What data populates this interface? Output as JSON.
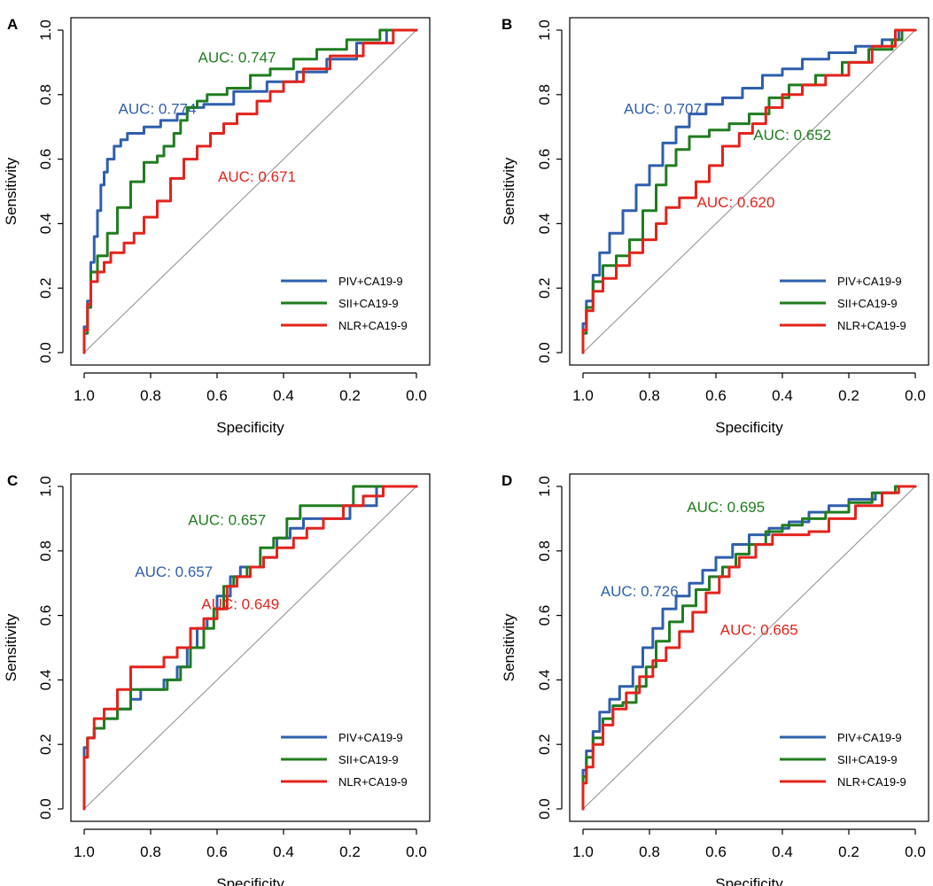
{
  "colors": {
    "PIV+CA19-9": "#2f5fad",
    "SII+CA19-9": "#1f7d1f",
    "NLR+CA19-9": "#e3231c",
    "diagonal": "#8c8c8c",
    "axis": "#000000"
  },
  "chart_data": [
    {
      "type": "line",
      "panel": "A",
      "title": "",
      "xlabel": "Specificity",
      "ylabel": "Sensitivity",
      "xlim": [
        1.0,
        0.0
      ],
      "ylim": [
        0.0,
        1.0
      ],
      "x_reversed": true,
      "xticks": [
        "1.0",
        "0.8",
        "0.6",
        "0.4",
        "0.2",
        "0.0"
      ],
      "yticks": [
        "0.0",
        "0.2",
        "0.4",
        "0.6",
        "0.8",
        "1.0"
      ],
      "legend": [
        "PIV+CA19-9",
        "SII+CA19-9",
        "NLR+CA19-9"
      ],
      "legend_position": "bottom-right",
      "series": [
        {
          "name": "PIV+CA19-9",
          "auc_label": "AUC: 0.774",
          "auc_at": [
            0.78,
            0.74
          ],
          "x": [
            1.0,
            0.99,
            0.98,
            0.97,
            0.96,
            0.95,
            0.94,
            0.93,
            0.91,
            0.89,
            0.87,
            0.82,
            0.77,
            0.72,
            0.69,
            0.64,
            0.55,
            0.45,
            0.36,
            0.27,
            0.18,
            0.09,
            0.0
          ],
          "y": [
            0.0,
            0.08,
            0.16,
            0.28,
            0.36,
            0.44,
            0.52,
            0.56,
            0.6,
            0.64,
            0.66,
            0.68,
            0.7,
            0.72,
            0.74,
            0.76,
            0.77,
            0.81,
            0.84,
            0.87,
            0.91,
            0.96,
            1.0
          ]
        },
        {
          "name": "SII+CA19-9",
          "auc_label": "AUC: 0.747",
          "auc_at": [
            0.54,
            0.9
          ],
          "x": [
            1.0,
            0.99,
            0.98,
            0.96,
            0.93,
            0.9,
            0.86,
            0.82,
            0.78,
            0.76,
            0.73,
            0.71,
            0.69,
            0.66,
            0.63,
            0.57,
            0.5,
            0.44,
            0.37,
            0.3,
            0.21,
            0.11,
            0.0
          ],
          "y": [
            0.0,
            0.06,
            0.14,
            0.25,
            0.3,
            0.37,
            0.45,
            0.53,
            0.59,
            0.61,
            0.64,
            0.68,
            0.72,
            0.76,
            0.78,
            0.8,
            0.82,
            0.86,
            0.88,
            0.91,
            0.94,
            0.97,
            1.0
          ]
        },
        {
          "name": "NLR+CA19-9",
          "auc_label": "AUC: 0.671",
          "auc_at": [
            0.48,
            0.53
          ],
          "x": [
            1.0,
            0.99,
            0.98,
            0.96,
            0.94,
            0.92,
            0.88,
            0.85,
            0.82,
            0.78,
            0.74,
            0.7,
            0.66,
            0.62,
            0.58,
            0.54,
            0.48,
            0.44,
            0.4,
            0.34,
            0.26,
            0.16,
            0.07,
            0.0
          ],
          "y": [
            0.0,
            0.07,
            0.15,
            0.22,
            0.25,
            0.28,
            0.31,
            0.34,
            0.37,
            0.42,
            0.47,
            0.54,
            0.6,
            0.64,
            0.68,
            0.71,
            0.74,
            0.78,
            0.81,
            0.84,
            0.88,
            0.92,
            0.96,
            1.0
          ]
        }
      ]
    },
    {
      "type": "line",
      "panel": "B",
      "title": "",
      "xlabel": "Specificity",
      "ylabel": "Sensitivity",
      "xlim": [
        1.0,
        0.0
      ],
      "ylim": [
        0.0,
        1.0
      ],
      "x_reversed": true,
      "xticks": [
        "1.0",
        "0.8",
        "0.6",
        "0.4",
        "0.2",
        "0.0"
      ],
      "yticks": [
        "0.0",
        "0.2",
        "0.4",
        "0.6",
        "0.8",
        "1.0"
      ],
      "legend": [
        "PIV+CA19-9",
        "SII+CA19-9",
        "NLR+CA19-9"
      ],
      "legend_position": "bottom-right",
      "series": [
        {
          "name": "PIV+CA19-9",
          "auc_label": "AUC: 0.707",
          "auc_at": [
            0.76,
            0.74
          ],
          "x": [
            1.0,
            0.99,
            0.97,
            0.95,
            0.92,
            0.88,
            0.84,
            0.8,
            0.76,
            0.72,
            0.68,
            0.63,
            0.58,
            0.52,
            0.46,
            0.4,
            0.34,
            0.26,
            0.18,
            0.1,
            0.05,
            0.0
          ],
          "y": [
            0.0,
            0.09,
            0.16,
            0.24,
            0.31,
            0.37,
            0.44,
            0.52,
            0.58,
            0.65,
            0.7,
            0.74,
            0.77,
            0.79,
            0.82,
            0.86,
            0.88,
            0.91,
            0.93,
            0.95,
            0.97,
            1.0
          ]
        },
        {
          "name": "SII+CA19-9",
          "auc_label": "AUC: 0.652",
          "auc_at": [
            0.37,
            0.66
          ],
          "x": [
            1.0,
            0.99,
            0.97,
            0.94,
            0.9,
            0.86,
            0.82,
            0.78,
            0.75,
            0.72,
            0.68,
            0.62,
            0.56,
            0.5,
            0.44,
            0.38,
            0.3,
            0.22,
            0.14,
            0.07,
            0.04,
            0.0
          ],
          "y": [
            0.0,
            0.06,
            0.14,
            0.22,
            0.27,
            0.3,
            0.35,
            0.44,
            0.52,
            0.58,
            0.63,
            0.67,
            0.69,
            0.71,
            0.74,
            0.79,
            0.83,
            0.86,
            0.9,
            0.94,
            0.97,
            1.0
          ]
        },
        {
          "name": "NLR+CA19-9",
          "auc_label": "AUC: 0.620",
          "auc_at": [
            0.54,
            0.45
          ],
          "x": [
            1.0,
            0.99,
            0.97,
            0.94,
            0.9,
            0.86,
            0.82,
            0.78,
            0.75,
            0.71,
            0.66,
            0.62,
            0.58,
            0.53,
            0.49,
            0.45,
            0.4,
            0.34,
            0.27,
            0.2,
            0.13,
            0.06,
            0.0
          ],
          "y": [
            0.0,
            0.07,
            0.13,
            0.19,
            0.23,
            0.27,
            0.31,
            0.35,
            0.4,
            0.45,
            0.48,
            0.53,
            0.58,
            0.64,
            0.68,
            0.71,
            0.76,
            0.8,
            0.83,
            0.86,
            0.9,
            0.95,
            1.0
          ]
        }
      ]
    },
    {
      "type": "line",
      "panel": "C",
      "title": "",
      "xlabel": "Specificity",
      "ylabel": "Sensitivity",
      "xlim": [
        1.0,
        0.0
      ],
      "ylim": [
        0.0,
        1.0
      ],
      "x_reversed": true,
      "xticks": [
        "1.0",
        "0.8",
        "0.6",
        "0.4",
        "0.2",
        "0.0"
      ],
      "yticks": [
        "0.0",
        "0.2",
        "0.4",
        "0.6",
        "0.8",
        "1.0"
      ],
      "legend": [
        "PIV+CA19-9",
        "SII+CA19-9",
        "NLR+CA19-9"
      ],
      "legend_position": "bottom-right",
      "series": [
        {
          "name": "PIV+CA19-9",
          "auc_label": "AUC: 0.657",
          "auc_at": [
            0.73,
            0.72
          ],
          "x": [
            1.0,
            0.99,
            0.97,
            0.94,
            0.9,
            0.86,
            0.83,
            0.76,
            0.72,
            0.69,
            0.66,
            0.63,
            0.6,
            0.56,
            0.53,
            0.5,
            0.46,
            0.42,
            0.38,
            0.34,
            0.28,
            0.2,
            0.12,
            0.07,
            0.0
          ],
          "y": [
            0.0,
            0.19,
            0.22,
            0.25,
            0.28,
            0.31,
            0.34,
            0.37,
            0.4,
            0.44,
            0.5,
            0.56,
            0.59,
            0.66,
            0.72,
            0.75,
            0.75,
            0.78,
            0.84,
            0.87,
            0.9,
            0.9,
            0.94,
            1.0,
            1.0
          ]
        },
        {
          "name": "SII+CA19-9",
          "auc_label": "AUC: 0.657",
          "auc_at": [
            0.57,
            0.88
          ],
          "x": [
            1.0,
            0.99,
            0.97,
            0.94,
            0.9,
            0.86,
            0.82,
            0.75,
            0.71,
            0.68,
            0.64,
            0.61,
            0.58,
            0.55,
            0.51,
            0.47,
            0.43,
            0.39,
            0.35,
            0.27,
            0.19,
            0.11,
            0.04,
            0.0
          ],
          "y": [
            0.0,
            0.16,
            0.22,
            0.25,
            0.28,
            0.31,
            0.37,
            0.37,
            0.4,
            0.44,
            0.5,
            0.56,
            0.62,
            0.69,
            0.72,
            0.75,
            0.81,
            0.84,
            0.9,
            0.94,
            0.94,
            1.0,
            1.0,
            1.0
          ]
        },
        {
          "name": "NLR+CA19-9",
          "auc_label": "AUC: 0.649",
          "auc_at": [
            0.53,
            0.62
          ],
          "x": [
            1.0,
            0.99,
            0.97,
            0.94,
            0.9,
            0.86,
            0.82,
            0.76,
            0.72,
            0.68,
            0.64,
            0.6,
            0.57,
            0.54,
            0.5,
            0.46,
            0.42,
            0.37,
            0.33,
            0.28,
            0.22,
            0.16,
            0.1,
            0.04,
            0.0
          ],
          "y": [
            0.0,
            0.16,
            0.22,
            0.28,
            0.31,
            0.37,
            0.44,
            0.44,
            0.47,
            0.5,
            0.56,
            0.59,
            0.62,
            0.69,
            0.72,
            0.75,
            0.78,
            0.81,
            0.84,
            0.87,
            0.9,
            0.94,
            0.97,
            1.0,
            1.0
          ]
        }
      ]
    },
    {
      "type": "line",
      "panel": "D",
      "title": "",
      "xlabel": "Specificity",
      "ylabel": "Sensitivity",
      "xlim": [
        1.0,
        0.0
      ],
      "ylim": [
        0.0,
        1.0
      ],
      "x_reversed": true,
      "xticks": [
        "1.0",
        "0.8",
        "0.6",
        "0.4",
        "0.2",
        "0.0"
      ],
      "yticks": [
        "0.0",
        "0.2",
        "0.4",
        "0.6",
        "0.8",
        "1.0"
      ],
      "legend": [
        "PIV+CA19-9",
        "SII+CA19-9",
        "NLR+CA19-9"
      ],
      "legend_position": "bottom-right",
      "series": [
        {
          "name": "PIV+CA19-9",
          "auc_label": "AUC: 0.726",
          "auc_at": [
            0.83,
            0.66
          ],
          "x": [
            1.0,
            0.99,
            0.97,
            0.95,
            0.92,
            0.89,
            0.85,
            0.82,
            0.79,
            0.76,
            0.72,
            0.68,
            0.64,
            0.6,
            0.55,
            0.5,
            0.44,
            0.38,
            0.32,
            0.26,
            0.2,
            0.12,
            0.06,
            0.0
          ],
          "y": [
            0.0,
            0.12,
            0.18,
            0.24,
            0.3,
            0.34,
            0.38,
            0.44,
            0.5,
            0.56,
            0.62,
            0.66,
            0.7,
            0.74,
            0.78,
            0.82,
            0.85,
            0.87,
            0.89,
            0.92,
            0.94,
            0.96,
            0.98,
            1.0
          ]
        },
        {
          "name": "SII+CA19-9",
          "auc_label": "AUC: 0.695",
          "auc_at": [
            0.57,
            0.92
          ],
          "x": [
            1.0,
            0.99,
            0.97,
            0.94,
            0.91,
            0.88,
            0.84,
            0.81,
            0.78,
            0.74,
            0.7,
            0.66,
            0.62,
            0.58,
            0.54,
            0.5,
            0.45,
            0.4,
            0.34,
            0.27,
            0.2,
            0.13,
            0.06,
            0.0
          ],
          "y": [
            0.0,
            0.1,
            0.16,
            0.22,
            0.28,
            0.32,
            0.33,
            0.38,
            0.44,
            0.52,
            0.58,
            0.63,
            0.68,
            0.72,
            0.75,
            0.79,
            0.82,
            0.86,
            0.88,
            0.9,
            0.92,
            0.95,
            0.98,
            1.0
          ]
        },
        {
          "name": "NLR+CA19-9",
          "auc_label": "AUC: 0.665",
          "auc_at": [
            0.47,
            0.54
          ],
          "x": [
            1.0,
            0.99,
            0.97,
            0.94,
            0.91,
            0.87,
            0.83,
            0.79,
            0.75,
            0.71,
            0.67,
            0.63,
            0.59,
            0.56,
            0.53,
            0.48,
            0.43,
            0.38,
            0.32,
            0.26,
            0.18,
            0.1,
            0.05,
            0.0
          ],
          "y": [
            0.0,
            0.08,
            0.13,
            0.2,
            0.26,
            0.31,
            0.36,
            0.41,
            0.46,
            0.5,
            0.55,
            0.61,
            0.67,
            0.72,
            0.75,
            0.78,
            0.82,
            0.85,
            0.85,
            0.86,
            0.9,
            0.94,
            0.98,
            1.0
          ]
        }
      ]
    }
  ]
}
